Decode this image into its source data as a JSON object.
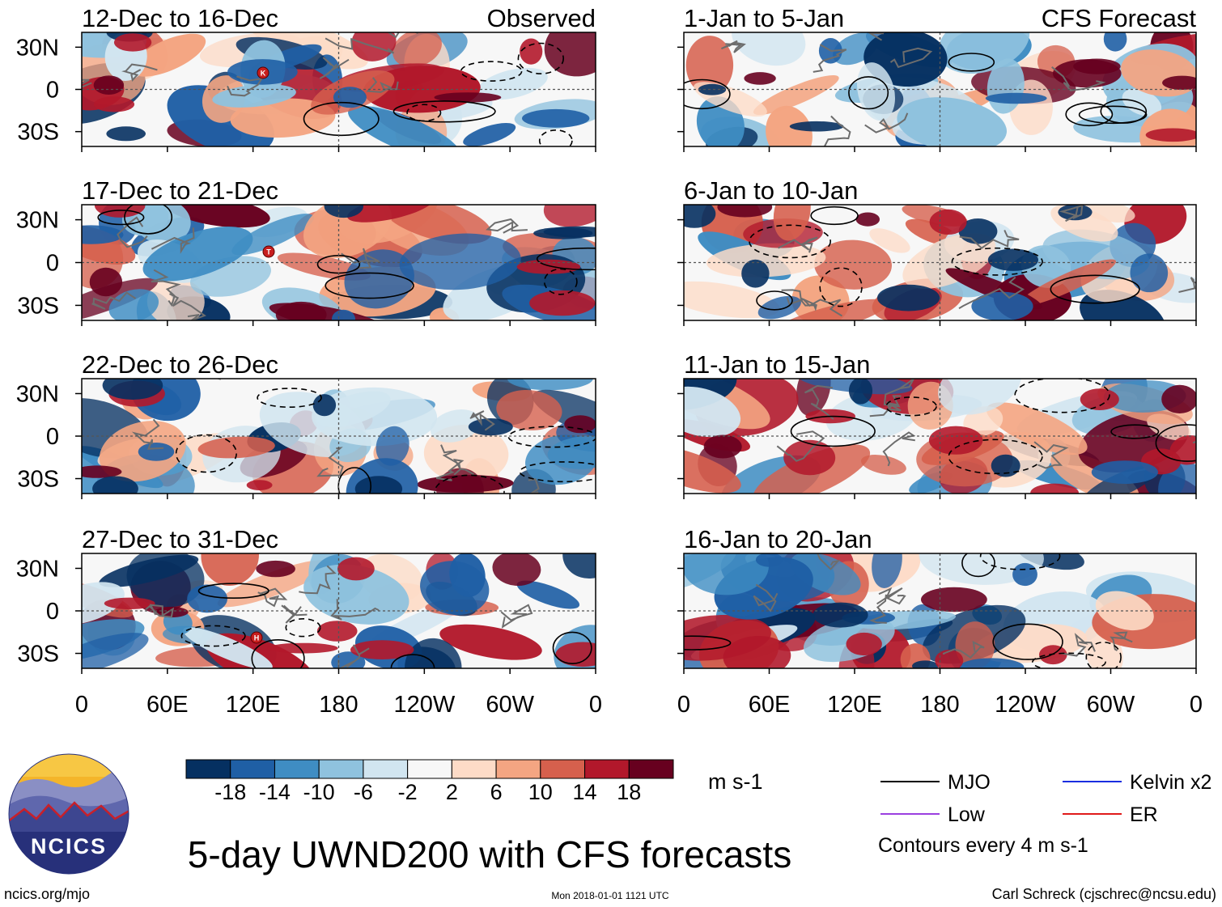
{
  "chart_data": {
    "type": "heatmap",
    "title": "5-day UWND200 with CFS forecasts",
    "variable": "UWND200",
    "units": "m s-1",
    "colorbar": {
      "ticks": [
        "-18",
        "-14",
        "-10",
        "-6",
        "-2",
        "2",
        "6",
        "10",
        "14",
        "18"
      ],
      "colors": [
        "#053061",
        "#1f5fa5",
        "#3f8dc3",
        "#8fc2de",
        "#d1e5f0",
        "#f7f7f7",
        "#fddbc7",
        "#f4a582",
        "#d6604d",
        "#b2182b",
        "#67001f"
      ]
    },
    "x_ticks": [
      "0",
      "60E",
      "120E",
      "180",
      "120W",
      "60W",
      "0"
    ],
    "y_ticks": [
      "30N",
      "0",
      "30S"
    ],
    "column_headers": {
      "observed": "Observed",
      "forecast": "CFS Forecast"
    },
    "panels": [
      {
        "column": "observed",
        "title": "12-Dec to 16-Dec",
        "marker": "K"
      },
      {
        "column": "observed",
        "title": "17-Dec to 21-Dec",
        "marker": "T"
      },
      {
        "column": "observed",
        "title": "22-Dec to 26-Dec",
        "marker": ""
      },
      {
        "column": "observed",
        "title": "27-Dec to 31-Dec",
        "marker": "H"
      },
      {
        "column": "forecast",
        "title": "1-Jan to 5-Jan",
        "marker": ""
      },
      {
        "column": "forecast",
        "title": "6-Jan to 10-Jan",
        "marker": ""
      },
      {
        "column": "forecast",
        "title": "11-Jan to 15-Jan",
        "marker": ""
      },
      {
        "column": "forecast",
        "title": "16-Jan to 20-Jan",
        "marker": ""
      }
    ],
    "legend": [
      {
        "label": "MJO",
        "color": "#000000"
      },
      {
        "label": "Kelvin x2",
        "color": "#1a2ee0"
      },
      {
        "label": "Low",
        "color": "#9b3fe0"
      },
      {
        "label": "ER",
        "color": "#e01a1a"
      }
    ],
    "contour_note": "Contours every 4 m s-1"
  },
  "footer": {
    "logo_text": "NCICS",
    "url": "ncics.org/mjo",
    "timestamp": "Mon 2018-01-01 1121 UTC",
    "credit": "Carl Schreck (cjschrec@ncsu.edu)"
  }
}
